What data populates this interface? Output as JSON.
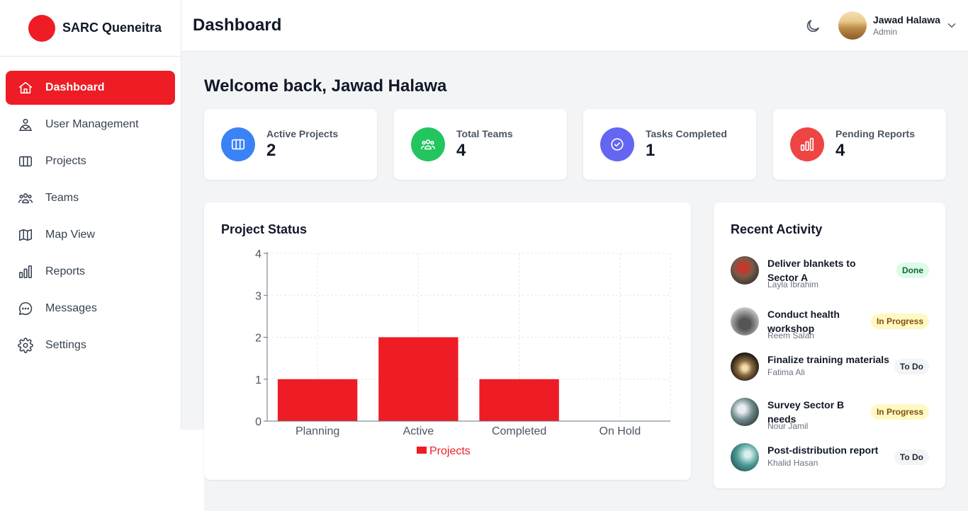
{
  "brand": {
    "name": "SARC Queneitra"
  },
  "sidebar": {
    "items": [
      {
        "label": "Dashboard",
        "icon": "home-icon",
        "active": true
      },
      {
        "label": "User Management",
        "icon": "user-management-icon"
      },
      {
        "label": "Projects",
        "icon": "columns-icon"
      },
      {
        "label": "Teams",
        "icon": "users-icon"
      },
      {
        "label": "Map View",
        "icon": "map-icon"
      },
      {
        "label": "Reports",
        "icon": "bar-chart-icon"
      },
      {
        "label": "Messages",
        "icon": "chat-icon"
      },
      {
        "label": "Settings",
        "icon": "gear-icon"
      }
    ]
  },
  "header": {
    "title": "Dashboard",
    "user": {
      "name": "Jawad Halawa",
      "role": "Admin"
    }
  },
  "welcome": "Welcome back, Jawad Halawa",
  "stats": [
    {
      "label": "Active Projects",
      "value": "2",
      "color": "#3b82f6",
      "icon": "columns-icon"
    },
    {
      "label": "Total Teams",
      "value": "4",
      "color": "#22c55e",
      "icon": "users-icon"
    },
    {
      "label": "Tasks Completed",
      "value": "1",
      "color": "#6366f1",
      "icon": "check-circle-icon"
    },
    {
      "label": "Pending Reports",
      "value": "4",
      "color": "#ef4444",
      "icon": "bar-chart-icon"
    }
  ],
  "chart_panel": {
    "title": "Project Status"
  },
  "chart_data": {
    "type": "bar",
    "title": "",
    "xlabel": "",
    "ylabel": "",
    "categories": [
      "Planning",
      "Active",
      "Completed",
      "On Hold"
    ],
    "series": [
      {
        "name": "Projects",
        "values": [
          1,
          2,
          1,
          0
        ],
        "color": "#ee1c25"
      }
    ],
    "ylim": [
      0,
      4
    ],
    "yticks": [
      "0",
      "1",
      "2",
      "3",
      "4"
    ],
    "grid": true,
    "legend": "bottom"
  },
  "activity": {
    "title": "Recent Activity",
    "items": [
      {
        "title": "Deliver blankets to Sector A",
        "user": "Layla Ibrahim",
        "status": "Done",
        "kind": "done"
      },
      {
        "title": "Conduct health workshop",
        "user": "Reem Salah",
        "status": "In Progress",
        "kind": "progress"
      },
      {
        "title": "Finalize training materials",
        "user": "Fatima Ali",
        "status": "To Do",
        "kind": "todo"
      },
      {
        "title": "Survey Sector B needs",
        "user": "Nour Jamil",
        "status": "In Progress",
        "kind": "progress"
      },
      {
        "title": "Post-distribution report",
        "user": "Khalid Hasan",
        "status": "To Do",
        "kind": "todo"
      }
    ]
  }
}
